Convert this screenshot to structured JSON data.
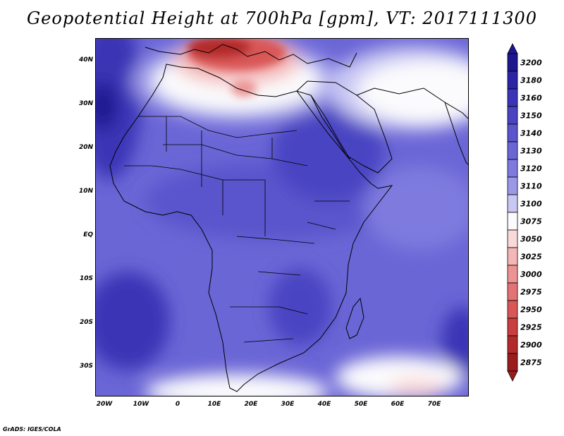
{
  "title": "Geopotential Height at 700hPa [gpm], VT: 2017111300",
  "credit": "GrADS: IGES/COLA",
  "map": {
    "variable": "Geopotential Height",
    "level": "700hPa",
    "units": "gpm",
    "valid_time": "2017111300",
    "lon_range": [
      -23,
      79
    ],
    "lat_range": [
      -37,
      45
    ],
    "lat_labels": [
      "40N",
      "30N",
      "20N",
      "10N",
      "EQ",
      "10S",
      "20S",
      "30S"
    ],
    "lat_values": [
      40,
      30,
      20,
      10,
      0,
      -10,
      -20,
      -30
    ],
    "lon_labels": [
      "20W",
      "10W",
      "0",
      "10E",
      "20E",
      "30E",
      "40E",
      "50E",
      "60E",
      "70E"
    ],
    "lon_values": [
      -20,
      -10,
      0,
      10,
      20,
      30,
      40,
      50,
      60,
      70
    ]
  },
  "legend": {
    "levels": [
      "3200",
      "3180",
      "3160",
      "3150",
      "3140",
      "3130",
      "3120",
      "3110",
      "3100",
      "3075",
      "3050",
      "3025",
      "3000",
      "2975",
      "2950",
      "2925",
      "2900",
      "2875"
    ],
    "colors": [
      "#1c168f",
      "#2a24a6",
      "#3a34b6",
      "#4a44c2",
      "#5a55cc",
      "#6b66d6",
      "#7e7ade",
      "#9b98e8",
      "#c9c7f3",
      "#fbfbfd",
      "#fad9d9",
      "#f4b6b6",
      "#ec9494",
      "#e47474",
      "#d95757",
      "#c93e3e",
      "#b32a2a",
      "#9a1c1c"
    ]
  }
}
